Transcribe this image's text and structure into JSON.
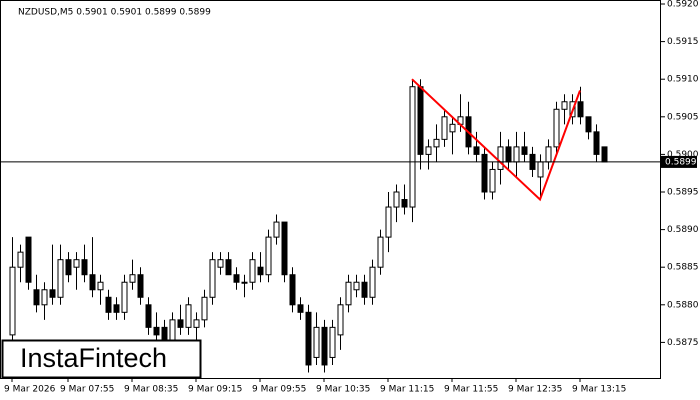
{
  "chart_data": {
    "type": "candlestick",
    "title": "NZDUSD,M5  0.5901 0.5901 0.5899 0.5899",
    "logo": "InstaFintech",
    "categories": [
      "9 Mar 2026",
      null,
      null,
      null,
      null,
      null,
      null,
      "9 Mar 07:55",
      null,
      null,
      null,
      null,
      null,
      null,
      null,
      "9 Mar 08:35",
      null,
      null,
      null,
      null,
      null,
      null,
      null,
      "9 Mar 09:15",
      null,
      null,
      null,
      null,
      null,
      null,
      null,
      "9 Mar 09:55",
      null,
      null,
      null,
      null,
      null,
      null,
      null,
      "9 Mar 10:35",
      null,
      null,
      null,
      null,
      null,
      null,
      null,
      "9 Mar 11:15",
      null,
      null,
      null,
      null,
      null,
      null,
      null,
      "9 Mar 11:55",
      null,
      null,
      null,
      null,
      null,
      null,
      null,
      "9 Mar 12:35",
      null,
      null,
      null,
      null,
      null,
      null,
      null,
      "9 Mar 13:15",
      null,
      null,
      null
    ],
    "open": [
      0.5876,
      0.5885,
      0.5889,
      0.5882,
      0.588,
      0.5882,
      0.5881,
      0.5886,
      0.5885,
      0.5886,
      0.5884,
      0.5882,
      0.5881,
      0.588,
      0.5879,
      0.5883,
      0.5884,
      0.588,
      0.5877,
      0.5877,
      0.5875,
      0.5878,
      0.5877,
      0.5877,
      0.5878,
      0.5881,
      0.5885,
      0.5886,
      0.5884,
      0.5883,
      0.5883,
      0.5885,
      0.5884,
      0.5889,
      0.5891,
      0.5884,
      0.588,
      0.5879,
      0.5873,
      0.5877,
      0.5873,
      0.5876,
      0.588,
      0.5882,
      0.5883,
      0.5881,
      0.5885,
      0.5889,
      0.5893,
      0.5894,
      0.5893,
      0.5909,
      0.59,
      0.5901,
      0.5902,
      0.5903,
      0.5904,
      0.5905,
      0.5901,
      0.59,
      0.5895,
      0.5898,
      0.5901,
      0.5899,
      0.5901,
      0.59,
      0.5897,
      0.5899,
      0.5901,
      0.5906,
      0.5905,
      0.5907,
      0.5905,
      0.5903,
      0.5901
    ],
    "high": [
      0.5889,
      0.5888,
      0.5889,
      0.5884,
      0.5883,
      0.5888,
      0.5888,
      0.5887,
      0.5887,
      0.5888,
      0.5889,
      0.5884,
      0.5882,
      0.5881,
      0.5884,
      0.5886,
      0.5885,
      0.5881,
      0.5879,
      0.5878,
      0.5879,
      0.588,
      0.5881,
      0.5879,
      0.5882,
      0.5887,
      0.5887,
      0.5887,
      0.5885,
      0.5884,
      0.5887,
      0.5887,
      0.589,
      0.5892,
      0.5891,
      0.5885,
      0.5881,
      0.588,
      0.5879,
      0.5878,
      0.5878,
      0.5881,
      0.5884,
      0.5884,
      0.5884,
      0.5886,
      0.589,
      0.5895,
      0.5896,
      0.5896,
      0.591,
      0.591,
      0.5902,
      0.5904,
      0.5906,
      0.5905,
      0.5908,
      0.5907,
      0.5903,
      0.5901,
      0.5899,
      0.5903,
      0.5902,
      0.5903,
      0.5903,
      0.5901,
      0.59,
      0.5902,
      0.5907,
      0.5908,
      0.5908,
      0.5909,
      0.5905,
      0.5904,
      0.5901
    ],
    "low": [
      0.5871,
      0.5883,
      0.5882,
      0.5879,
      0.5878,
      0.588,
      0.588,
      0.5883,
      0.5882,
      0.5883,
      0.5881,
      0.588,
      0.5878,
      0.5878,
      0.5878,
      0.5882,
      0.588,
      0.5876,
      0.5874,
      0.5875,
      0.5873,
      0.5876,
      0.5876,
      0.5874,
      0.5877,
      0.588,
      0.5884,
      0.5884,
      0.5882,
      0.5881,
      0.5882,
      0.5883,
      0.5883,
      0.5888,
      0.5883,
      0.5879,
      0.5878,
      0.5871,
      0.5872,
      0.5871,
      0.5872,
      0.5874,
      0.5879,
      0.5881,
      0.588,
      0.588,
      0.5884,
      0.5887,
      0.5891,
      0.5892,
      0.5891,
      0.5898,
      0.5898,
      0.5899,
      0.5901,
      0.59,
      0.5903,
      0.59,
      0.5899,
      0.5894,
      0.5894,
      0.5896,
      0.5898,
      0.5897,
      0.5899,
      0.5897,
      0.5894,
      0.5898,
      0.59,
      0.5904,
      0.5904,
      0.5904,
      0.5902,
      0.5899,
      0.5899
    ],
    "close": [
      0.5885,
      0.5887,
      0.5883,
      0.588,
      0.5882,
      0.5881,
      0.5886,
      0.5884,
      0.5886,
      0.5884,
      0.5882,
      0.5883,
      0.5879,
      0.5879,
      0.5883,
      0.5884,
      0.5881,
      0.5877,
      0.5876,
      0.5875,
      0.5878,
      0.5877,
      0.588,
      0.5878,
      0.5881,
      0.5886,
      0.5886,
      0.5884,
      0.5883,
      0.5883,
      0.5886,
      0.5884,
      0.5889,
      0.5891,
      0.5884,
      0.588,
      0.5879,
      0.5872,
      0.5877,
      0.5872,
      0.5877,
      0.588,
      0.5883,
      0.5883,
      0.5881,
      0.5885,
      0.5889,
      0.5893,
      0.5895,
      0.5893,
      0.5909,
      0.59,
      0.5901,
      0.5902,
      0.5905,
      0.5904,
      0.5905,
      0.5901,
      0.59,
      0.5895,
      0.5898,
      0.5901,
      0.5899,
      0.5901,
      0.59,
      0.5898,
      0.5899,
      0.5901,
      0.5906,
      0.5907,
      0.5907,
      0.5905,
      0.5903,
      0.59,
      0.5899
    ],
    "up_color": "#ffffff",
    "down_color": "#000000",
    "ylim": [
      0.587,
      0.592
    ],
    "yticks": [
      0.5875,
      {
        "value": 0.588,
        "label": "0.5880"
      },
      0.5885,
      {
        "value": 0.589,
        "label": "0.5890"
      },
      0.5895,
      {
        "value": 0.59,
        "label": "0.5900"
      },
      0.5905,
      {
        "value": 0.591,
        "label": "0.5910"
      },
      0.5915,
      {
        "value": 0.592,
        "label": "0.5920"
      }
    ],
    "current_price": 0.5899,
    "pattern": {
      "color": "#ff0000",
      "x": [
        50,
        66,
        71
      ],
      "y": [
        0.591,
        0.5894,
        0.59085
      ]
    }
  }
}
